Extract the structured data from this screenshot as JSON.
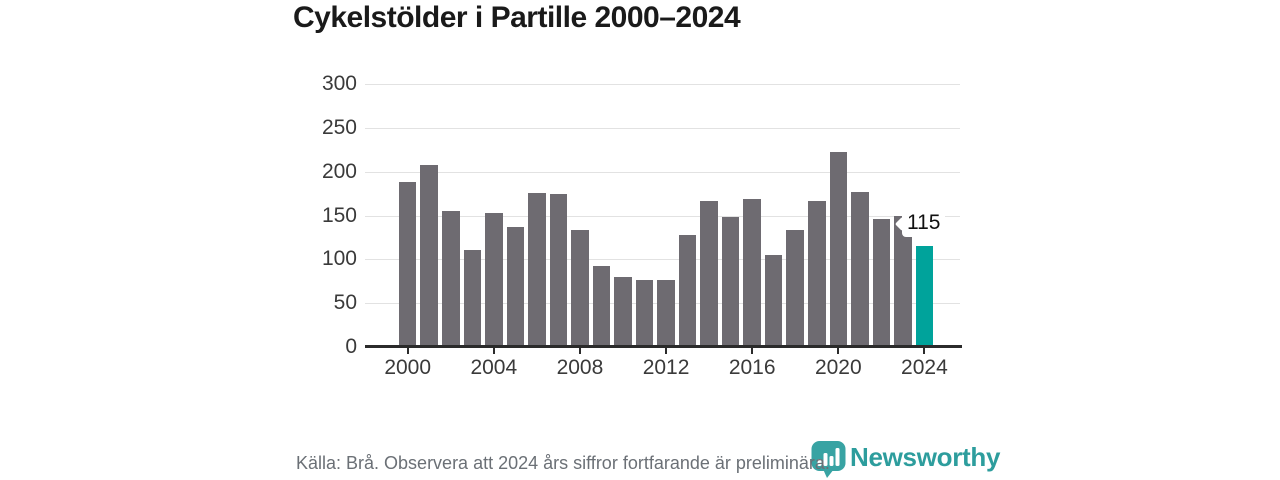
{
  "title": "Cykelstölder i Partille 2000–2024",
  "chart_data": {
    "type": "bar",
    "x": [
      2000,
      2001,
      2002,
      2003,
      2004,
      2005,
      2006,
      2007,
      2008,
      2009,
      2010,
      2011,
      2012,
      2013,
      2014,
      2015,
      2016,
      2017,
      2018,
      2019,
      2020,
      2021,
      2022,
      2023,
      2024
    ],
    "values": [
      188,
      208,
      155,
      111,
      153,
      137,
      176,
      175,
      134,
      92,
      80,
      77,
      76,
      128,
      167,
      148,
      169,
      105,
      133,
      166,
      222,
      177,
      146,
      150,
      115
    ],
    "title": "Cykelstölder i Partille 2000–2024",
    "xlabel": "",
    "ylabel": "",
    "ylim": [
      0,
      300
    ],
    "y_ticks": [
      0,
      50,
      100,
      150,
      200,
      250,
      300
    ],
    "x_ticks": [
      2000,
      2004,
      2008,
      2012,
      2016,
      2020,
      2024
    ],
    "grid": "horizontal",
    "legend": "none",
    "bar_color": "#6e6b71",
    "highlight_year": 2024,
    "highlight_color": "#00a39b",
    "highlight_label": "115"
  },
  "annotation": {
    "label": "115"
  },
  "footer": {
    "source_note": "Källa: Brå. Observera att 2024 års siffror fortfarande är preliminära."
  },
  "logo": {
    "text": "Newsworthy",
    "text_color": "#2d9d9d",
    "icon_color": "#38a3a3",
    "icon_name": "newsworthy-bar-chart-pin-icon"
  }
}
